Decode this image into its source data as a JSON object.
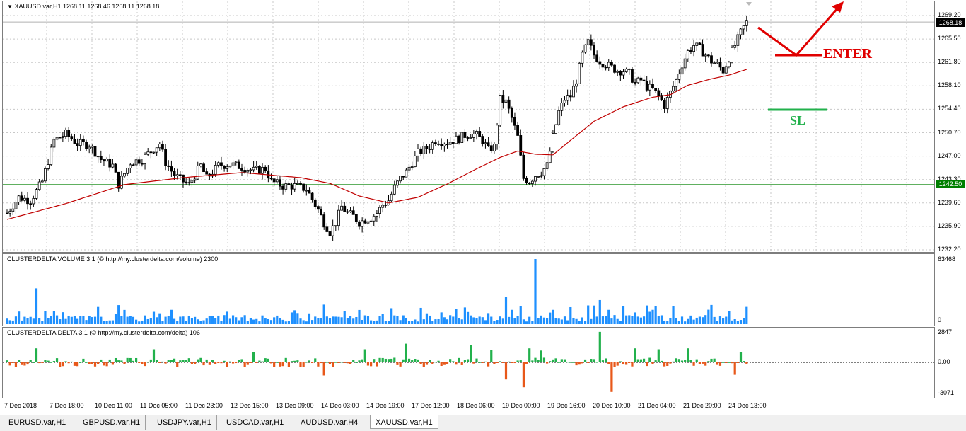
{
  "main_chart": {
    "title": "XAUUSD.var,H1  1268.11 1268.46 1268.11 1268.18",
    "price_scale": [
      "1269.20",
      "1265.50",
      "1261.80",
      "1258.10",
      "1254.40",
      "1250.70",
      "1247.00",
      "1243.30",
      "1239.60",
      "1235.90",
      "1232.20"
    ],
    "current_price": "1268.18",
    "hline_price": "1242.50",
    "annotations": {
      "enter": "ENTER",
      "sl": "SL"
    }
  },
  "volume_pane": {
    "title": "CLUSTERDELTA VOLUME 3.1 (© http://my.clusterdelta.com/volume) 2300",
    "scale_top": "63468",
    "scale_bottom": "0"
  },
  "delta_pane": {
    "title": "CLUSTERDELTA DELTA 3.1 (© http://my.clusterdelta.com/delta) 106",
    "scale_top": "2847",
    "scale_mid": "0.00",
    "scale_bottom": "-3071"
  },
  "time_axis": [
    "7 Dec 2018",
    "7 Dec 18:00",
    "10 Dec 11:00",
    "11 Dec 05:00",
    "11 Dec 23:00",
    "12 Dec 15:00",
    "13 Dec 09:00",
    "14 Dec 03:00",
    "14 Dec 19:00",
    "17 Dec 12:00",
    "18 Dec 06:00",
    "19 Dec 00:00",
    "19 Dec 16:00",
    "20 Dec 10:00",
    "21 Dec 04:00",
    "21 Dec 20:00",
    "24 Dec 13:00"
  ],
  "tabs": [
    "EURUSD.var,H1",
    "GBPUSD.var,H1",
    "USDJPY.var,H1",
    "USDCAD.var,H1",
    "AUDUSD.var,H4",
    "XAUUSD.var,H1"
  ],
  "active_tab": 5,
  "colors": {
    "ma": "#c00000",
    "hline": "#008000",
    "enter": "#e00000",
    "sl": "#22b14c",
    "volume": "#1e90ff",
    "delta_pos": "#22b14c",
    "delta_neg": "#e8581a"
  },
  "chart_data": {
    "type": "candlestick",
    "ylim": [
      1232.2,
      1269.2
    ],
    "path_prices": [
      [
        0,
        1238
      ],
      [
        4,
        1240.5
      ],
      [
        8,
        1240
      ],
      [
        12,
        1243
      ],
      [
        16,
        1249.5
      ],
      [
        20,
        1250.5
      ],
      [
        24,
        1249
      ],
      [
        28,
        1248.8
      ],
      [
        32,
        1246.5
      ],
      [
        36,
        1245.5
      ],
      [
        38,
        1242.5
      ],
      [
        42,
        1246
      ],
      [
        46,
        1246.5
      ],
      [
        50,
        1248.2
      ],
      [
        52,
        1249
      ],
      [
        54,
        1246
      ],
      [
        57,
        1244
      ],
      [
        60,
        1243
      ],
      [
        62,
        1242.5
      ],
      [
        64,
        1244
      ],
      [
        66,
        1245.5
      ],
      [
        68,
        1243.5
      ],
      [
        70,
        1244.5
      ],
      [
        72,
        1245.5
      ],
      [
        76,
        1245.7
      ],
      [
        80,
        1245.3
      ],
      [
        84,
        1244.7
      ],
      [
        88,
        1245
      ],
      [
        90,
        1243
      ],
      [
        94,
        1242.3
      ],
      [
        98,
        1242.3
      ],
      [
        102,
        1241.8
      ],
      [
        106,
        1238.5
      ],
      [
        108,
        1236.5
      ],
      [
        110,
        1235
      ],
      [
        112,
        1236.5
      ],
      [
        114,
        1239
      ],
      [
        116,
        1238
      ],
      [
        118,
        1237.5
      ],
      [
        120,
        1236.5
      ],
      [
        122,
        1237
      ],
      [
        124,
        1237.3
      ],
      [
        126,
        1238
      ],
      [
        128,
        1239.3
      ],
      [
        130,
        1240
      ],
      [
        132,
        1242
      ],
      [
        134,
        1243.5
      ],
      [
        136,
        1244.5
      ],
      [
        138,
        1246
      ],
      [
        140,
        1247.5
      ],
      [
        142,
        1248
      ],
      [
        144,
        1248.5
      ],
      [
        146,
        1249.5
      ],
      [
        148,
        1249.3
      ],
      [
        150,
        1249.2
      ],
      [
        152,
        1249.5
      ],
      [
        154,
        1249.8
      ],
      [
        156,
        1250.3
      ],
      [
        158,
        1250.5
      ],
      [
        160,
        1250.3
      ],
      [
        162,
        1249.5
      ],
      [
        164,
        1248
      ],
      [
        166,
        1248.5
      ],
      [
        168,
        1256
      ],
      [
        170,
        1255.5
      ],
      [
        172,
        1253
      ],
      [
        174,
        1250
      ],
      [
        176,
        1243.5
      ],
      [
        178,
        1243
      ],
      [
        180,
        1244
      ],
      [
        182,
        1244.5
      ],
      [
        184,
        1245.5
      ],
      [
        186,
        1250
      ],
      [
        188,
        1254
      ],
      [
        190,
        1256
      ],
      [
        192,
        1256.5
      ],
      [
        194,
        1259
      ],
      [
        196,
        1263
      ],
      [
        198,
        1265
      ],
      [
        200,
        1263
      ],
      [
        202,
        1262
      ],
      [
        204,
        1261.5
      ],
      [
        206,
        1261
      ],
      [
        208,
        1260.5
      ],
      [
        210,
        1260.5
      ],
      [
        212,
        1260
      ],
      [
        214,
        1258.5
      ],
      [
        216,
        1259
      ],
      [
        218,
        1258
      ],
      [
        220,
        1257.5
      ],
      [
        222,
        1256.5
      ],
      [
        224,
        1255
      ],
      [
        226,
        1257
      ],
      [
        228,
        1259
      ],
      [
        230,
        1261.5
      ],
      [
        232,
        1263.5
      ],
      [
        234,
        1264.5
      ],
      [
        236,
        1264
      ],
      [
        238,
        1263
      ],
      [
        240,
        1262
      ],
      [
        242,
        1261.5
      ],
      [
        244,
        1260.5
      ],
      [
        246,
        1262.5
      ],
      [
        248,
        1264.5
      ],
      [
        250,
        1266.5
      ],
      [
        252,
        1268.2
      ]
    ],
    "ma_prices": [
      [
        0,
        1237
      ],
      [
        20,
        1239.5
      ],
      [
        40,
        1242.5
      ],
      [
        60,
        1243.6
      ],
      [
        80,
        1244.4
      ],
      [
        100,
        1243.6
      ],
      [
        110,
        1242.7
      ],
      [
        120,
        1240.7
      ],
      [
        130,
        1239.6
      ],
      [
        140,
        1240.5
      ],
      [
        150,
        1242.6
      ],
      [
        160,
        1245
      ],
      [
        168,
        1246.8
      ],
      [
        174,
        1247.8
      ],
      [
        180,
        1247.3
      ],
      [
        186,
        1247.2
      ],
      [
        192,
        1249.5
      ],
      [
        200,
        1252.5
      ],
      [
        210,
        1254.8
      ],
      [
        220,
        1256.3
      ],
      [
        226,
        1256.7
      ],
      [
        232,
        1258.2
      ],
      [
        240,
        1259.2
      ],
      [
        246,
        1259.8
      ],
      [
        252,
        1260.7
      ]
    ],
    "bar_count": 253
  }
}
